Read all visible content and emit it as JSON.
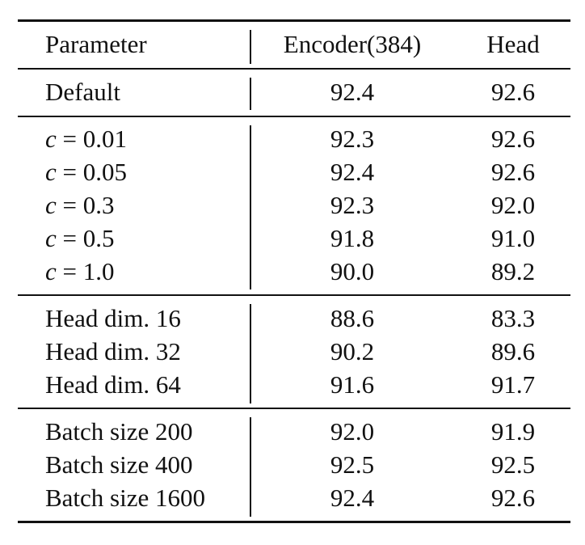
{
  "table": {
    "headers": {
      "parameter": "Parameter",
      "encoder": "Encoder(384)",
      "head": "Head"
    },
    "groups": [
      {
        "rows": [
          {
            "param": "Default",
            "encoder": "92.4",
            "head": "92.6"
          }
        ]
      },
      {
        "rows": [
          {
            "param_var": "c",
            "param_rest": " = 0.01",
            "encoder": "92.3",
            "head": "92.6"
          },
          {
            "param_var": "c",
            "param_rest": " = 0.05",
            "encoder": "92.4",
            "head": "92.6"
          },
          {
            "param_var": "c",
            "param_rest": " = 0.3",
            "encoder": "92.3",
            "head": "92.0"
          },
          {
            "param_var": "c",
            "param_rest": " = 0.5",
            "encoder": "91.8",
            "head": "91.0"
          },
          {
            "param_var": "c",
            "param_rest": " = 1.0",
            "encoder": "90.0",
            "head": "89.2"
          }
        ]
      },
      {
        "rows": [
          {
            "param": "Head dim. 16",
            "encoder": "88.6",
            "head": "83.3"
          },
          {
            "param": "Head dim. 32",
            "encoder": "90.2",
            "head": "89.6"
          },
          {
            "param": "Head dim. 64",
            "encoder": "91.6",
            "head": "91.7"
          }
        ]
      },
      {
        "rows": [
          {
            "param": "Batch size 200",
            "encoder": "92.0",
            "head": "91.9"
          },
          {
            "param": "Batch size 400",
            "encoder": "92.5",
            "head": "92.5"
          },
          {
            "param": "Batch size 1600",
            "encoder": "92.4",
            "head": "92.6"
          }
        ]
      }
    ]
  }
}
